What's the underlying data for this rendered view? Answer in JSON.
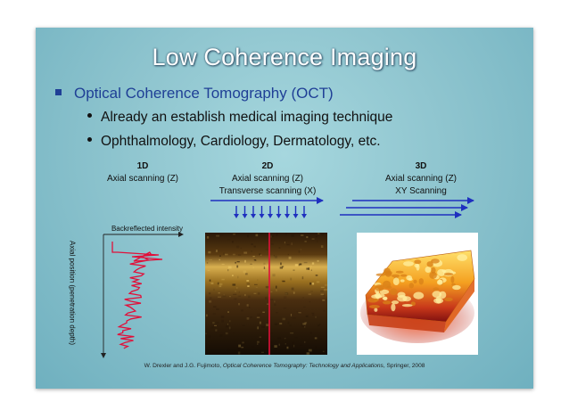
{
  "slide": {
    "title": "Low Coherence Imaging",
    "bullet": "Optical Coherence Tomography (OCT)",
    "sub_bullets": [
      "Already an establish medical imaging technique",
      "Ophthalmology, Cardiology, Dermatology, etc."
    ]
  },
  "panels": {
    "one_d": {
      "heading": "1D",
      "line1": "Axial scanning  (Z)",
      "x_label": "Backreflected intensity",
      "y_label": "Axial position  (penetration depth)"
    },
    "two_d": {
      "heading": "2D",
      "line1": "Axial scanning  (Z)",
      "line2": "Transverse scanning (X)"
    },
    "three_d": {
      "heading": "3D",
      "line1": "Axial scanning  (Z)",
      "line2": "XY Scanning"
    }
  },
  "citation": {
    "authors": "W. Drexler and J.G. Fujimoto, ",
    "book": "Optical Coherence Tomography: Technology and Applications",
    "publisher": ", Springer, 2008"
  },
  "colors": {
    "title_text": "#ffffff",
    "bullet_blue": "#1f3f96",
    "arrow_blue": "#1e2fbf",
    "signal_red": "#e0103a"
  }
}
